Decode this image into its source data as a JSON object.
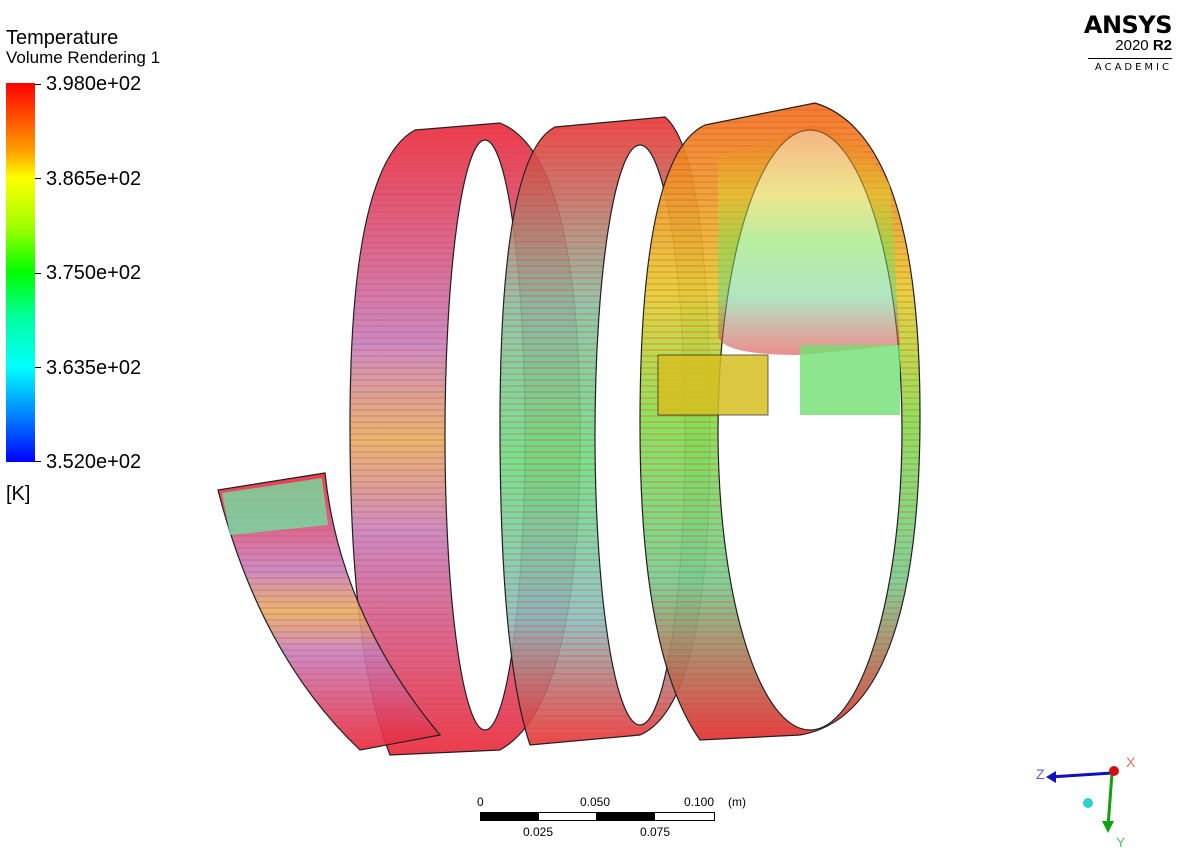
{
  "legend": {
    "title": "Temperature",
    "subtitle": "Volume Rendering 1",
    "ticks": [
      "3.980e+02",
      "3.865e+02",
      "3.750e+02",
      "3.635e+02",
      "3.520e+02"
    ],
    "units": "[K]",
    "colors": [
      "#ff0000",
      "#ffff00",
      "#00ff00",
      "#00ffff",
      "#0000ff"
    ]
  },
  "logo": {
    "name": "ANSYS",
    "version_year": "2020",
    "version_release": "R2",
    "edition": "ACADEMIC"
  },
  "scale_bar": {
    "top_labels": [
      "0",
      "0.050",
      "0.100"
    ],
    "unit": "(m)",
    "bottom_labels": [
      "0.025",
      "0.075"
    ]
  },
  "axes": {
    "x_label": "X",
    "y_label": "Y",
    "z_label": "Z",
    "x_color": "#d01010",
    "y_color": "#10a010",
    "z_color": "#1010c0"
  }
}
